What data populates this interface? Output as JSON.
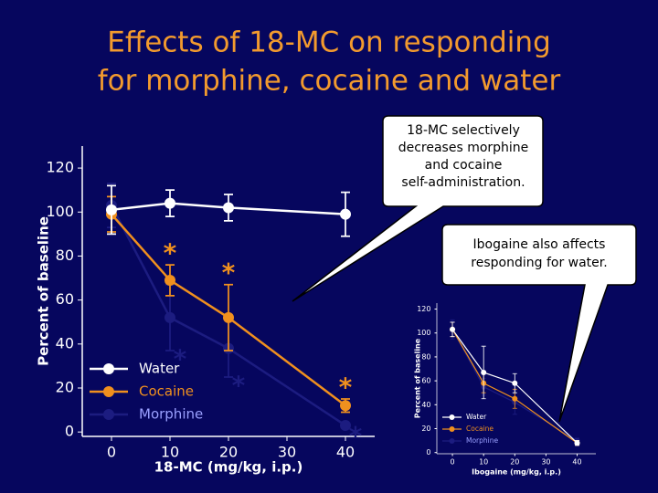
{
  "title_lines": [
    "Effects of 18-MC on responding",
    "for morphine, cocaine and water"
  ],
  "callouts": [
    "18-MC selectively decreases morphine and cocaine self-administration.",
    "Ibogaine also affects responding for water."
  ],
  "chart_data": [
    {
      "type": "line",
      "xlabel": "18-MC (mg/kg, i.p.)",
      "ylabel": "Percent of baseline",
      "x": [
        0,
        10,
        20,
        40
      ],
      "xlim": [
        -5,
        45
      ],
      "xticks": [
        0,
        10,
        20,
        30,
        40
      ],
      "ylim": [
        -2,
        130
      ],
      "yticks": [
        0,
        20,
        40,
        60,
        80,
        100,
        120
      ],
      "legend": "lower left",
      "series": [
        {
          "name": "Water",
          "color": "#ffffff",
          "values": [
            101,
            104,
            102,
            99
          ],
          "errors": [
            11,
            6,
            6,
            10
          ],
          "markers": [
            null,
            null,
            null,
            null
          ]
        },
        {
          "name": "Cocaine",
          "color": "#f0901e",
          "values": [
            99,
            69,
            52,
            12
          ],
          "errors": [
            8,
            7,
            15,
            3
          ],
          "markers": [
            null,
            "*",
            "*",
            "*"
          ]
        },
        {
          "name": "Morphine",
          "color": "#1c1c80",
          "values": [
            103,
            52,
            38,
            3
          ],
          "errors": [
            10,
            15,
            13,
            1
          ],
          "markers": [
            null,
            "*",
            "*",
            "*"
          ]
        }
      ]
    },
    {
      "type": "line",
      "xlabel": "Ibogaine (mg/kg, i.p.)",
      "ylabel": "Percent of baseline",
      "x": [
        0,
        10,
        20,
        40
      ],
      "xlim": [
        -5,
        46
      ],
      "xticks": [
        0,
        10,
        20,
        30,
        40
      ],
      "ylim": [
        -1,
        125
      ],
      "yticks": [
        0,
        20,
        40,
        60,
        80,
        100,
        120
      ],
      "legend": "lower left",
      "series": [
        {
          "name": "Water",
          "color": "#ffffff",
          "values": [
            103,
            67,
            58,
            8
          ],
          "errors": [
            6,
            22,
            8,
            2
          ]
        },
        {
          "name": "Cocaine",
          "color": "#f0901e",
          "values": [
            103,
            58,
            45,
            8
          ],
          "errors": [
            6,
            8,
            8,
            2
          ]
        },
        {
          "name": "Morphine",
          "color": "#1c1c80",
          "values": [
            103,
            55,
            42,
            10
          ],
          "errors": [
            8,
            7,
            10,
            2
          ]
        }
      ]
    }
  ]
}
